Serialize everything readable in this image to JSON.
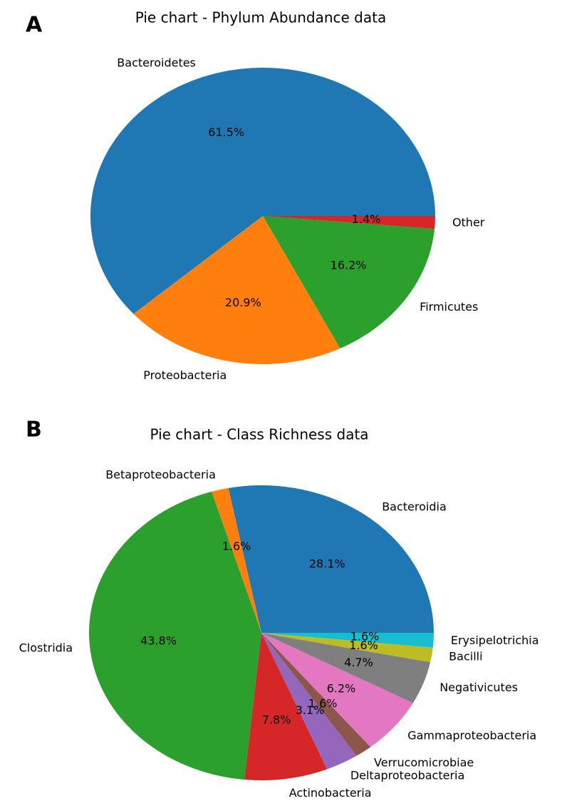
{
  "chart_data": [
    {
      "type": "pie",
      "panel": "A",
      "title": "Pie chart - Phylum Abundance data",
      "categories": [
        "Bacteroidetes",
        "Proteobacteria",
        "Firmicutes",
        "Other"
      ],
      "values": [
        61.5,
        20.9,
        16.2,
        1.4
      ],
      "value_labels": [
        "61.5%",
        "20.9%",
        "16.2%",
        "1.4%"
      ],
      "colors": [
        "#1f77b4",
        "#ff7f0e",
        "#2ca02c",
        "#d62728"
      ]
    },
    {
      "type": "pie",
      "panel": "B",
      "title": "Pie chart - Class Richness data",
      "categories": [
        "Bacteroidia",
        "Betaproteobacteria",
        "Clostridia",
        "Actinobacteria",
        "Deltaproteobacteria",
        "Verrucomicrobiae",
        "Gammaproteobacteria",
        "Negativicutes",
        "Bacilli",
        "Erysipelotrichia"
      ],
      "values": [
        28.1,
        1.6,
        43.8,
        7.8,
        3.1,
        1.6,
        6.2,
        4.7,
        1.6,
        1.6
      ],
      "value_labels": [
        "28.1%",
        "1.6%",
        "43.8%",
        "7.8%",
        "3.1%",
        "1.6%",
        "6.2%",
        "4.7%",
        "1.6%",
        "1.6%"
      ],
      "colors": [
        "#1f77b4",
        "#ff7f0e",
        "#2ca02c",
        "#d62728",
        "#9467bd",
        "#8c564b",
        "#e377c2",
        "#7f7f7f",
        "#bcbd22",
        "#17becf"
      ]
    }
  ]
}
